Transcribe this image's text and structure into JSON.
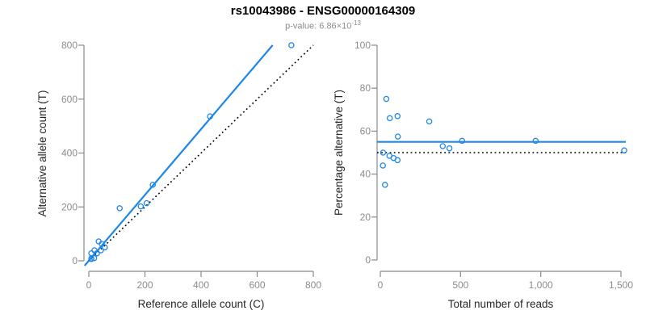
{
  "header": {
    "title": "rs10043986 - ENSG00000164309",
    "subtitle_prefix": "p-value: 6.86×10",
    "subtitle_exponent": "-13"
  },
  "colors": {
    "accent_blue": "#1f87e8",
    "reference_black": "#000000",
    "axis_line": "#8a8a8a",
    "tick_label": "#8c8c8c",
    "axis_title": "#262626",
    "subtitle_gray": "#8c8c8c",
    "background": "#ffffff"
  },
  "chart_data": [
    {
      "type": "scatter",
      "panel": "left",
      "xlabel": "Reference allele count (C)",
      "ylabel": "Alternative allele count (T)",
      "xlim": [
        0,
        800
      ],
      "ylim": [
        0,
        800
      ],
      "xticks": [
        0,
        200,
        400,
        600,
        800
      ],
      "xtick_labels": [
        "0",
        "200",
        "400",
        "600",
        "800"
      ],
      "yticks": [
        0,
        200,
        400,
        600,
        800
      ],
      "ytick_labels": [
        "0",
        "200",
        "400",
        "600",
        "800"
      ],
      "grid": false,
      "legend": false,
      "marker": "open-circle",
      "points": [
        [
          9,
          28
        ],
        [
          20,
          39
        ],
        [
          35,
          72
        ],
        [
          46,
          63
        ],
        [
          9,
          9
        ],
        [
          29,
          28
        ],
        [
          43,
          39
        ],
        [
          57,
          50
        ],
        [
          9,
          7
        ],
        [
          19,
          10
        ],
        [
          110,
          195
        ],
        [
          185,
          202
        ],
        [
          206,
          214
        ],
        [
          228,
          282
        ],
        [
          432,
          536
        ],
        [
          722,
          800
        ]
      ],
      "lines": [
        {
          "name": "fitted-line",
          "style": "solid",
          "color_key": "accent_blue",
          "x1": -15,
          "y1": -18,
          "x2": 655,
          "y2": 800
        },
        {
          "name": "identity-line",
          "style": "dotted",
          "color_key": "reference_black",
          "x1": 0,
          "y1": 0,
          "x2": 800,
          "y2": 800
        }
      ]
    },
    {
      "type": "scatter",
      "panel": "right",
      "xlabel": "Total number of reads",
      "ylabel": "Percentage alternative (T)",
      "xlim": [
        0,
        1500
      ],
      "ylim": [
        0,
        100
      ],
      "xticks": [
        0,
        500,
        1000,
        1500
      ],
      "xtick_labels": [
        "0",
        "500",
        "1,000",
        "1,500"
      ],
      "yticks": [
        0,
        20,
        40,
        60,
        80,
        100
      ],
      "ytick_labels": [
        "0",
        "20",
        "40",
        "60",
        "80",
        "100"
      ],
      "grid": false,
      "legend": false,
      "marker": "open-circle",
      "points": [
        [
          37,
          75
        ],
        [
          59,
          66
        ],
        [
          107,
          67
        ],
        [
          109,
          57.5
        ],
        [
          305,
          64.5
        ],
        [
          17,
          50
        ],
        [
          57,
          48.5
        ],
        [
          82,
          47.5
        ],
        [
          107,
          46.5
        ],
        [
          16,
          44
        ],
        [
          29,
          35
        ],
        [
          389,
          53
        ],
        [
          431,
          52
        ],
        [
          510,
          55.5
        ],
        [
          968,
          55.5
        ],
        [
          1520,
          51
        ]
      ],
      "lines": [
        {
          "name": "estimated-percentage-line",
          "style": "solid",
          "color_key": "accent_blue",
          "y": 55
        },
        {
          "name": "fifty-percent-line",
          "style": "dotted",
          "color_key": "reference_black",
          "y": 50
        }
      ]
    }
  ]
}
